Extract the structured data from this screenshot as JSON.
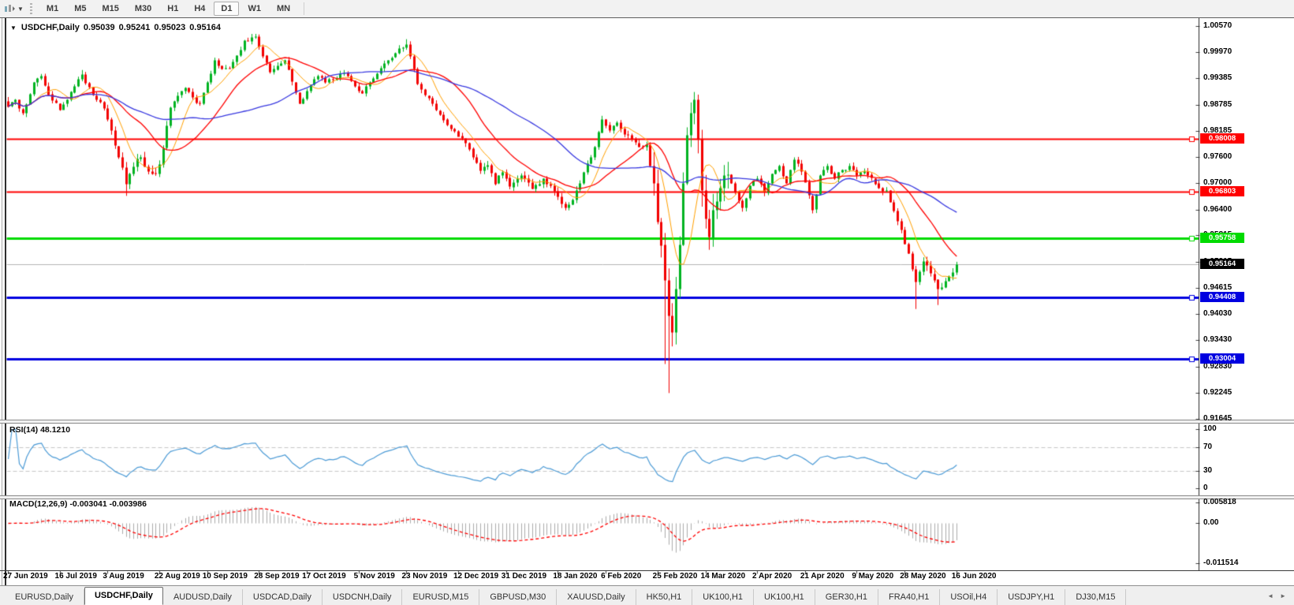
{
  "toolbar": {
    "timeframe_buttons": [
      "M1",
      "M5",
      "M15",
      "M30",
      "H1",
      "H4",
      "D1",
      "W1",
      "MN"
    ],
    "active_timeframe": "D1"
  },
  "chart_header": {
    "symbol": "USDCHF,Daily",
    "open": "0.95039",
    "high": "0.95241",
    "low": "0.95023",
    "close": "0.95164"
  },
  "price_axis_ticks": [
    "1.00570",
    "0.99970",
    "0.99385",
    "0.98785",
    "0.98185",
    "0.97600",
    "0.97000",
    "0.96400",
    "0.95815",
    "0.95215",
    "0.94615",
    "0.94030",
    "0.93430",
    "0.92830",
    "0.92245",
    "0.91645"
  ],
  "horizontal_lines": [
    {
      "label": "0.98008",
      "value": 0.98008,
      "color": "#ff0000",
      "width": 2
    },
    {
      "label": "0.96803",
      "value": 0.96803,
      "color": "#ff0000",
      "width": 2
    },
    {
      "label": "0.95758",
      "value": 0.95758,
      "color": "#00db00",
      "width": 3
    },
    {
      "label": "0.94408",
      "value": 0.94408,
      "color": "#0000e0",
      "width": 3
    },
    {
      "label": "0.93004",
      "value": 0.93004,
      "color": "#0000e0",
      "width": 3
    }
  ],
  "current_price": {
    "label": "0.95164",
    "value": 0.95164,
    "line_color": "#b4b4b4",
    "badge_bg": "#000000"
  },
  "rsi_pane": {
    "label": "RSI(14) 48.1210",
    "value": 48.121,
    "axis_ticks": [
      "100",
      "70",
      "30",
      "0"
    ],
    "level_lines": [
      70,
      30
    ],
    "line_color": "#4c9bd6",
    "level_color": "#c6c6c6"
  },
  "macd_pane": {
    "label": "MACD(12,26,9) -0.003041 -0.003986",
    "macd_value": -0.003041,
    "signal_value": -0.003986,
    "axis_ticks": [
      "0.005818",
      "0.00",
      "-0.011514"
    ],
    "histogram_color": "#ababab",
    "signal_color": "#ff0000"
  },
  "date_axis": [
    "27 Jun 2019",
    "16 Jul 2019",
    "3 Aug 2019",
    "22 Aug 2019",
    "10 Sep 2019",
    "28 Sep 2019",
    "17 Oct 2019",
    "5 Nov 2019",
    "23 Nov 2019",
    "12 Dec 2019",
    "31 Dec 2019",
    "18 Jan 2020",
    "6 Feb 2020",
    "25 Feb 2020",
    "14 Mar 2020",
    "2 Apr 2020",
    "21 Apr 2020",
    "9 May 2020",
    "28 May 2020",
    "16 Jun 2020"
  ],
  "tabs": {
    "items": [
      "EURUSD,Daily",
      "USDCHF,Daily",
      "AUDUSD,Daily",
      "USDCAD,Daily",
      "USDCNH,Daily",
      "EURUSD,M15",
      "GBPUSD,M30",
      "XAUUSD,Daily",
      "HK50,H1",
      "UK100,H1",
      "UK100,H1",
      "GER30,H1",
      "FRA40,H1",
      "USOil,H4",
      "USDJPY,H1",
      "DJ30,M15"
    ],
    "active_index": 1,
    "scroll_left_icon": "◄",
    "scroll_right_icon": "►"
  },
  "chart_data": {
    "type": "candlestick",
    "symbol": "USDCHF",
    "timeframe": "Daily",
    "candle_count": 258,
    "visible_price_range": [
      0.913,
      1.008
    ],
    "last_ohlc": {
      "open": 0.95039,
      "high": 0.95241,
      "low": 0.95023,
      "close": 0.95164
    },
    "up_color": "#00b321",
    "down_color": "#f20000",
    "close_anchors": [
      [
        0,
        0.9875
      ],
      [
        2,
        0.989
      ],
      [
        4,
        0.986
      ],
      [
        7,
        0.993
      ],
      [
        9,
        0.9944
      ],
      [
        11,
        0.9902
      ],
      [
        14,
        0.9868
      ],
      [
        16,
        0.989
      ],
      [
        20,
        0.9948
      ],
      [
        23,
        0.99
      ],
      [
        26,
        0.987
      ],
      [
        28,
        0.982
      ],
      [
        30,
        0.976
      ],
      [
        32,
        0.97
      ],
      [
        34,
        0.9738
      ],
      [
        36,
        0.976
      ],
      [
        38,
        0.9728
      ],
      [
        40,
        0.9722
      ],
      [
        42,
        0.978
      ],
      [
        44,
        0.9872
      ],
      [
        46,
        0.99
      ],
      [
        48,
        0.9917
      ],
      [
        50,
        0.9895
      ],
      [
        52,
        0.9881
      ],
      [
        54,
        0.993
      ],
      [
        56,
        0.998
      ],
      [
        58,
        0.996
      ],
      [
        60,
        0.9962
      ],
      [
        62,
        0.999
      ],
      [
        64,
        1.0025
      ],
      [
        67,
        1.0034
      ],
      [
        69,
        0.999
      ],
      [
        71,
        0.9953
      ],
      [
        73,
        0.9968
      ],
      [
        75,
        0.998
      ],
      [
        77,
        0.993
      ],
      [
        79,
        0.9881
      ],
      [
        81,
        0.991
      ],
      [
        84,
        0.9944
      ],
      [
        86,
        0.993
      ],
      [
        88,
        0.9935
      ],
      [
        90,
        0.995
      ],
      [
        92,
        0.9944
      ],
      [
        94,
        0.992
      ],
      [
        96,
        0.9905
      ],
      [
        98,
        0.993
      ],
      [
        100,
        0.995
      ],
      [
        103,
        0.998
      ],
      [
        106,
        1.0007
      ],
      [
        108,
        1.0016
      ],
      [
        110,
        0.996
      ],
      [
        111,
        0.9926
      ],
      [
        113,
        0.99
      ],
      [
        115,
        0.9881
      ],
      [
        118,
        0.9845
      ],
      [
        121,
        0.9819
      ],
      [
        124,
        0.9792
      ],
      [
        128,
        0.9729
      ],
      [
        130,
        0.9742
      ],
      [
        132,
        0.97
      ],
      [
        134,
        0.9726
      ],
      [
        136,
        0.9692
      ],
      [
        139,
        0.9718
      ],
      [
        142,
        0.9688
      ],
      [
        145,
        0.9712
      ],
      [
        148,
        0.9682
      ],
      [
        151,
        0.9645
      ],
      [
        153,
        0.9663
      ],
      [
        155,
        0.97
      ],
      [
        157,
        0.9745
      ],
      [
        159,
        0.9782
      ],
      [
        161,
        0.9846
      ],
      [
        163,
        0.982
      ],
      [
        165,
        0.9838
      ],
      [
        167,
        0.9812
      ],
      [
        169,
        0.98
      ],
      [
        171,
        0.9784
      ],
      [
        173,
        0.9788
      ],
      [
        175,
        0.97
      ],
      [
        176,
        0.9613
      ],
      [
        177,
        0.956
      ],
      [
        178,
        0.948
      ],
      [
        179,
        0.94
      ],
      [
        180,
        0.9362
      ],
      [
        181,
        0.946
      ],
      [
        182,
        0.956
      ],
      [
        183,
        0.97
      ],
      [
        184,
        0.981
      ],
      [
        185,
        0.986
      ],
      [
        186,
        0.989
      ],
      [
        187,
        0.98
      ],
      [
        188,
        0.9684
      ],
      [
        189,
        0.962
      ],
      [
        190,
        0.9578
      ],
      [
        191,
        0.964
      ],
      [
        192,
        0.966
      ],
      [
        193,
        0.969
      ],
      [
        195,
        0.972
      ],
      [
        197,
        0.968
      ],
      [
        199,
        0.9645
      ],
      [
        201,
        0.9695
      ],
      [
        203,
        0.9712
      ],
      [
        205,
        0.968
      ],
      [
        207,
        0.9722
      ],
      [
        209,
        0.974
      ],
      [
        211,
        0.97
      ],
      [
        213,
        0.9755
      ],
      [
        215,
        0.9728
      ],
      [
        217,
        0.9672
      ],
      [
        218,
        0.964
      ],
      [
        220,
        0.9718
      ],
      [
        222,
        0.974
      ],
      [
        224,
        0.971
      ],
      [
        226,
        0.973
      ],
      [
        228,
        0.974
      ],
      [
        230,
        0.9718
      ],
      [
        232,
        0.9728
      ],
      [
        234,
        0.9712
      ],
      [
        236,
        0.969
      ],
      [
        238,
        0.9684
      ],
      [
        240,
        0.9638
      ],
      [
        242,
        0.9594
      ],
      [
        244,
        0.954
      ],
      [
        245,
        0.9505
      ],
      [
        246,
        0.9477
      ],
      [
        247,
        0.95
      ],
      [
        248,
        0.9523
      ],
      [
        250,
        0.9495
      ],
      [
        252,
        0.946
      ],
      [
        254,
        0.9478
      ],
      [
        256,
        0.9498
      ],
      [
        257,
        0.95164
      ]
    ],
    "wick_overrides": {
      "20": {
        "high": 0.9958
      },
      "32": {
        "low": 0.9672
      },
      "67": {
        "high": 1.004
      },
      "108": {
        "high": 1.0028
      },
      "178": {
        "low": 0.929
      },
      "179": {
        "low": 0.9224
      },
      "180": {
        "low": 0.933
      },
      "246": {
        "low": 0.9415
      },
      "252": {
        "low": 0.9424
      }
    },
    "volatility_zones": [
      [
        0,
        30,
        0.0013
      ],
      [
        30,
        45,
        0.0018
      ],
      [
        45,
        124,
        0.0011
      ],
      [
        124,
        156,
        0.0013
      ],
      [
        156,
        174,
        0.0011
      ],
      [
        174,
        196,
        0.005
      ],
      [
        196,
        244,
        0.0012
      ],
      [
        244,
        258,
        0.0016
      ]
    ],
    "moving_averages": [
      {
        "period": 8,
        "color": "#ffa000",
        "width": 1
      },
      {
        "period": 20,
        "color": "#ff0000",
        "width": 1.3
      },
      {
        "period": 45,
        "color": "#3838e0",
        "width": 1.3
      }
    ],
    "rsi": {
      "period": 14,
      "scale": [
        0,
        100
      ],
      "levels": [
        30,
        70
      ]
    },
    "macd": {
      "fast": 12,
      "slow": 26,
      "signal": 9,
      "scale_max": 0.005818,
      "scale_min": -0.011514
    }
  }
}
